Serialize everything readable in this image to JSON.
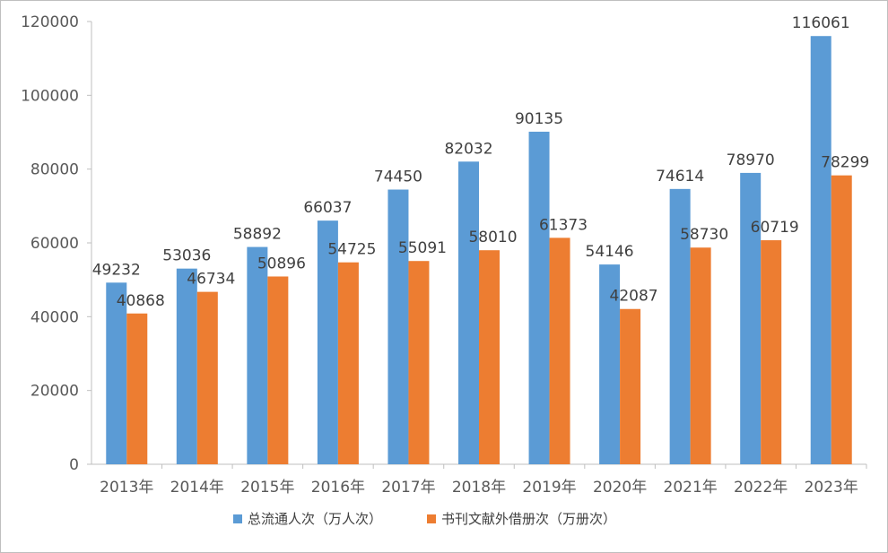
{
  "chart_data": {
    "type": "bar",
    "title": "",
    "xlabel": "",
    "ylabel": "",
    "ylim": [
      0,
      120000
    ],
    "yticks": [
      0,
      20000,
      40000,
      60000,
      80000,
      100000,
      120000
    ],
    "grid": false,
    "legend_position": "bottom",
    "categories": [
      "2013年",
      "2014年",
      "2015年",
      "2016年",
      "2017年",
      "2018年",
      "2019年",
      "2020年",
      "2021年",
      "2022年",
      "2023年"
    ],
    "series": [
      {
        "name": "总流通人次（万人次）",
        "color": "#5B9BD5",
        "values": [
          49232,
          53036,
          58892,
          66037,
          74450,
          82032,
          90135,
          54146,
          74614,
          78970,
          116061
        ]
      },
      {
        "name": "书刊文献外借册次（万册次）",
        "color": "#ED7D31",
        "values": [
          40868,
          46734,
          50896,
          54725,
          55091,
          58010,
          61373,
          42087,
          58730,
          60719,
          78299
        ]
      }
    ]
  }
}
